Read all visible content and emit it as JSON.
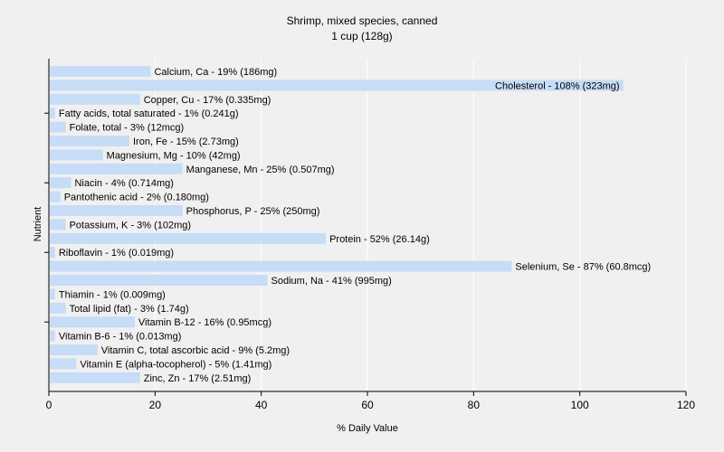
{
  "chart_data": {
    "type": "bar",
    "orientation": "horizontal",
    "title": "Shrimp, mixed species, canned",
    "subtitle": "1 cup (128g)",
    "xlabel": "% Daily Value",
    "ylabel": "Nutrient",
    "xlim": [
      0,
      120
    ],
    "xticks": [
      0,
      20,
      40,
      60,
      80,
      100,
      120
    ],
    "grid": true,
    "bar_color": "#c6dcf7",
    "categories": [
      "Calcium, Ca",
      "Cholesterol",
      "Copper, Cu",
      "Fatty acids, total saturated",
      "Folate, total",
      "Iron, Fe",
      "Magnesium, Mg",
      "Manganese, Mn",
      "Niacin",
      "Pantothenic acid",
      "Phosphorus, P",
      "Potassium, K",
      "Protein",
      "Riboflavin",
      "Selenium, Se",
      "Sodium, Na",
      "Thiamin",
      "Total lipid (fat)",
      "Vitamin B-12",
      "Vitamin B-6",
      "Vitamin C, total ascorbic acid",
      "Vitamin E (alpha-tocopherol)",
      "Zinc, Zn"
    ],
    "values": [
      19,
      108,
      17,
      1,
      3,
      15,
      10,
      25,
      4,
      2,
      25,
      3,
      52,
      1,
      87,
      41,
      1,
      3,
      16,
      1,
      9,
      5,
      17
    ],
    "labels": [
      "Calcium, Ca - 19% (186mg)",
      "Cholesterol - 108% (323mg)",
      "Copper, Cu - 17% (0.335mg)",
      "Fatty acids, total saturated - 1% (0.241g)",
      "Folate, total - 3% (12mcg)",
      "Iron, Fe - 15% (2.73mg)",
      "Magnesium, Mg - 10% (42mg)",
      "Manganese, Mn - 25% (0.507mg)",
      "Niacin - 4% (0.714mg)",
      "Pantothenic acid - 2% (0.180mg)",
      "Phosphorus, P - 25% (250mg)",
      "Potassium, K - 3% (102mg)",
      "Protein - 52% (26.14g)",
      "Riboflavin - 1% (0.019mg)",
      "Selenium, Se - 87% (60.8mcg)",
      "Sodium, Na - 41% (995mg)",
      "Thiamin - 1% (0.009mg)",
      "Total lipid (fat) - 3% (1.74g)",
      "Vitamin B-12 - 16% (0.95mcg)",
      "Vitamin B-6 - 1% (0.013mg)",
      "Vitamin C, total ascorbic acid - 9% (5.2mg)",
      "Vitamin E (alpha-tocopherol) - 5% (1.41mg)",
      "Zinc, Zn - 17% (2.51mg)"
    ]
  }
}
